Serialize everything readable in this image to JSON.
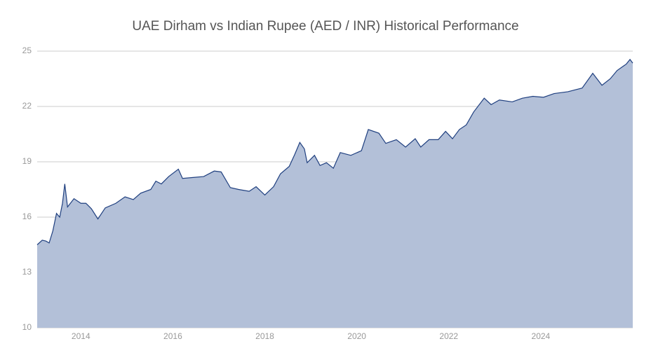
{
  "chart_data": {
    "type": "area",
    "title": "UAE Dirham vs Indian Rupee (AED / INR) Historical Performance",
    "x": [
      2013.05,
      2013.16,
      2013.24,
      2013.31,
      2013.39,
      2013.47,
      2013.54,
      2013.6,
      2013.65,
      2013.71,
      2013.85,
      2014.0,
      2014.11,
      2014.23,
      2014.37,
      2014.53,
      2014.76,
      2014.96,
      2015.14,
      2015.3,
      2015.52,
      2015.63,
      2015.75,
      2015.91,
      2016.12,
      2016.21,
      2016.44,
      2016.67,
      2016.9,
      2017.05,
      2017.25,
      2017.43,
      2017.66,
      2017.81,
      2018.0,
      2018.19,
      2018.34,
      2018.53,
      2018.65,
      2018.76,
      2018.86,
      2018.92,
      2019.08,
      2019.2,
      2019.34,
      2019.49,
      2019.64,
      2019.87,
      2020.1,
      2020.25,
      2020.48,
      2020.63,
      2020.86,
      2021.06,
      2021.27,
      2021.39,
      2021.57,
      2021.77,
      2021.93,
      2022.08,
      2022.23,
      2022.38,
      2022.54,
      2022.77,
      2022.92,
      2023.1,
      2023.38,
      2023.6,
      2023.83,
      2024.06,
      2024.29,
      2024.59,
      2024.9,
      2025.13,
      2025.33,
      2025.51,
      2025.66,
      2025.86,
      2025.94,
      2026.0
    ],
    "series": [
      {
        "name": "AED / INR",
        "color": "#1f3f7f",
        "fill": "#b3c0d8",
        "values": [
          14.5,
          14.75,
          14.7,
          14.6,
          15.25,
          16.2,
          16.0,
          16.75,
          17.8,
          16.55,
          17.0,
          16.75,
          16.75,
          16.45,
          15.9,
          16.5,
          16.75,
          17.1,
          16.95,
          17.3,
          17.5,
          17.95,
          17.8,
          18.2,
          18.6,
          18.1,
          18.15,
          18.2,
          18.5,
          18.45,
          17.6,
          17.5,
          17.4,
          17.65,
          17.2,
          17.65,
          18.35,
          18.75,
          19.4,
          20.05,
          19.7,
          18.95,
          19.35,
          18.8,
          18.95,
          18.65,
          19.5,
          19.35,
          19.6,
          20.75,
          20.55,
          20.0,
          20.2,
          19.8,
          20.25,
          19.8,
          20.2,
          20.2,
          20.65,
          20.25,
          20.75,
          21.0,
          21.7,
          22.45,
          22.1,
          22.35,
          22.25,
          22.45,
          22.55,
          22.5,
          22.7,
          22.8,
          23.0,
          23.8,
          23.15,
          23.5,
          23.95,
          24.3,
          24.55,
          24.35
        ]
      }
    ],
    "xlim": [
      2013.05,
      2026.0
    ],
    "xticks": [
      2014,
      2016,
      2018,
      2020,
      2022,
      2024
    ],
    "ylim": [
      10,
      25
    ],
    "yticks": [
      10,
      13,
      16,
      19,
      22,
      25
    ],
    "grid": true
  }
}
